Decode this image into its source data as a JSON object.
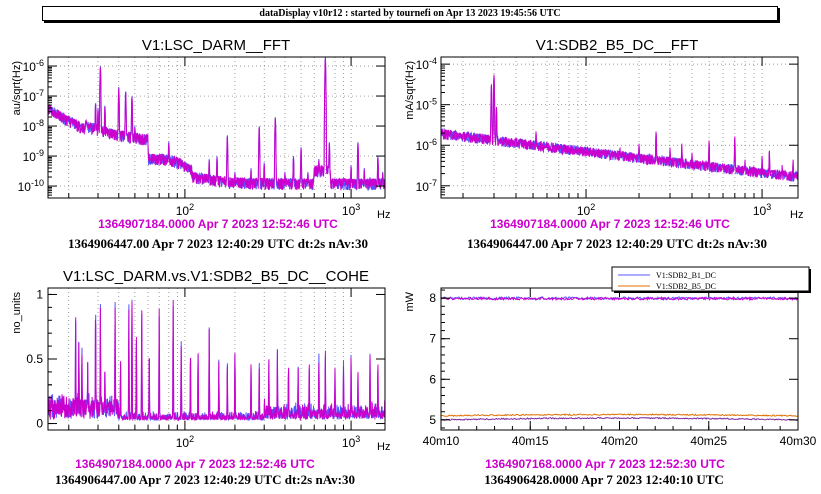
{
  "banner": "dataDisplay v10r12 : started by tournefi on Apr 13 2023 19:45:56 UTC",
  "colors": {
    "magenta": "#cc00cc",
    "blue": "#5555ff",
    "orange": "#e07000",
    "purple": "#7a2aa0"
  },
  "chart_data": [
    {
      "type": "line",
      "title": "V1:LSC_DARM__FFT",
      "ylabel": "au/sqrt(Hz)",
      "xunit": "Hz",
      "xscale": "log",
      "yscale": "log",
      "xlim": [
        15,
        1600
      ],
      "ylim": [
        4e-11,
        2e-06
      ],
      "yticks": [
        {
          "v": 1e-10,
          "m": "10",
          "e": "-10"
        },
        {
          "v": 1e-09,
          "m": "10",
          "e": "-9"
        },
        {
          "v": 1e-08,
          "m": "10",
          "e": "-8"
        },
        {
          "v": 1e-07,
          "m": "10",
          "e": "-7"
        },
        {
          "v": 1e-06,
          "m": "10",
          "e": "-6"
        }
      ],
      "xticks": [
        {
          "v": 100,
          "m": "10",
          "e": "2"
        },
        {
          "v": 1000,
          "m": "10",
          "e": "3"
        }
      ],
      "gen": "darm",
      "footer1": "1364907184.0000 Apr 7 2023 12:52:46 UTC",
      "footer2": "1364906447.00 Apr 7 2023 12:40:29 UTC dt:2s nAv:30"
    },
    {
      "type": "line",
      "title": "V1:SDB2_B5_DC__FFT",
      "ylabel": "mA/sqrt(Hz)",
      "xunit": "Hz",
      "xscale": "log",
      "yscale": "log",
      "xlim": [
        15,
        1600
      ],
      "ylim": [
        5e-08,
        0.00015
      ],
      "yticks": [
        {
          "v": 1e-07,
          "m": "10",
          "e": "-7"
        },
        {
          "v": 1e-06,
          "m": "10",
          "e": "-6"
        },
        {
          "v": 1e-05,
          "m": "10",
          "e": "-5"
        },
        {
          "v": 0.0001,
          "m": "10",
          "e": "-4"
        }
      ],
      "xticks": [
        {
          "v": 100,
          "m": "10",
          "e": "2"
        },
        {
          "v": 1000,
          "m": "10",
          "e": "3"
        }
      ],
      "gen": "sdb",
      "footer1": "1364907184.0000 Apr 7 2023 12:52:46 UTC",
      "footer2": "1364906447.00 Apr 7 2023 12:40:29 UTC dt:2s nAv:30"
    },
    {
      "type": "line",
      "title": "V1:LSC_DARM.vs.V1:SDB2_B5_DC__COHE",
      "ylabel": "no_units",
      "xunit": "Hz",
      "xscale": "log",
      "yscale": "linear",
      "xlim": [
        15,
        1600
      ],
      "ylim": [
        -0.05,
        1.05
      ],
      "yticks": [
        {
          "v": 0,
          "t": "0"
        },
        {
          "v": 0.5,
          "t": "0.5"
        },
        {
          "v": 1,
          "t": "1"
        }
      ],
      "xticks": [
        {
          "v": 100,
          "m": "10",
          "e": "2"
        },
        {
          "v": 1000,
          "m": "10",
          "e": "3"
        }
      ],
      "gen": "cohe",
      "footer1": "1364907184.0000 Apr 7 2023 12:52:46 UTC",
      "footer2": "1364906447.00 Apr 7 2023 12:40:29 UTC dt:2s nAv:30"
    },
    {
      "type": "line",
      "title": "",
      "ylabel": "mW",
      "xscale": "linear",
      "yscale": "linear",
      "xlim": [
        10,
        30
      ],
      "ylim": [
        4.75,
        8.25
      ],
      "yticks": [
        {
          "v": 5,
          "t": "5"
        },
        {
          "v": 6,
          "t": "6"
        },
        {
          "v": 7,
          "t": "7"
        },
        {
          "v": 8,
          "t": "8"
        }
      ],
      "xticks": [
        {
          "v": 10,
          "t": "40m10"
        },
        {
          "v": 15,
          "t": "40m15"
        },
        {
          "v": 20,
          "t": "40m20"
        },
        {
          "v": 25,
          "t": "40m25"
        },
        {
          "v": 30,
          "t": "40m30"
        }
      ],
      "gen": "trend",
      "legend": [
        {
          "name": "V1:SDB2_B1_DC",
          "color": "#5555ff"
        },
        {
          "name": "V1:SDB2_B5_DC",
          "color": "#e07000"
        }
      ],
      "footer1": "1364907168.0000 Apr 7 2023 12:52:30 UTC",
      "footer2": "1364906428.0000 Apr 7 2023 12:40:10 UTC"
    }
  ]
}
